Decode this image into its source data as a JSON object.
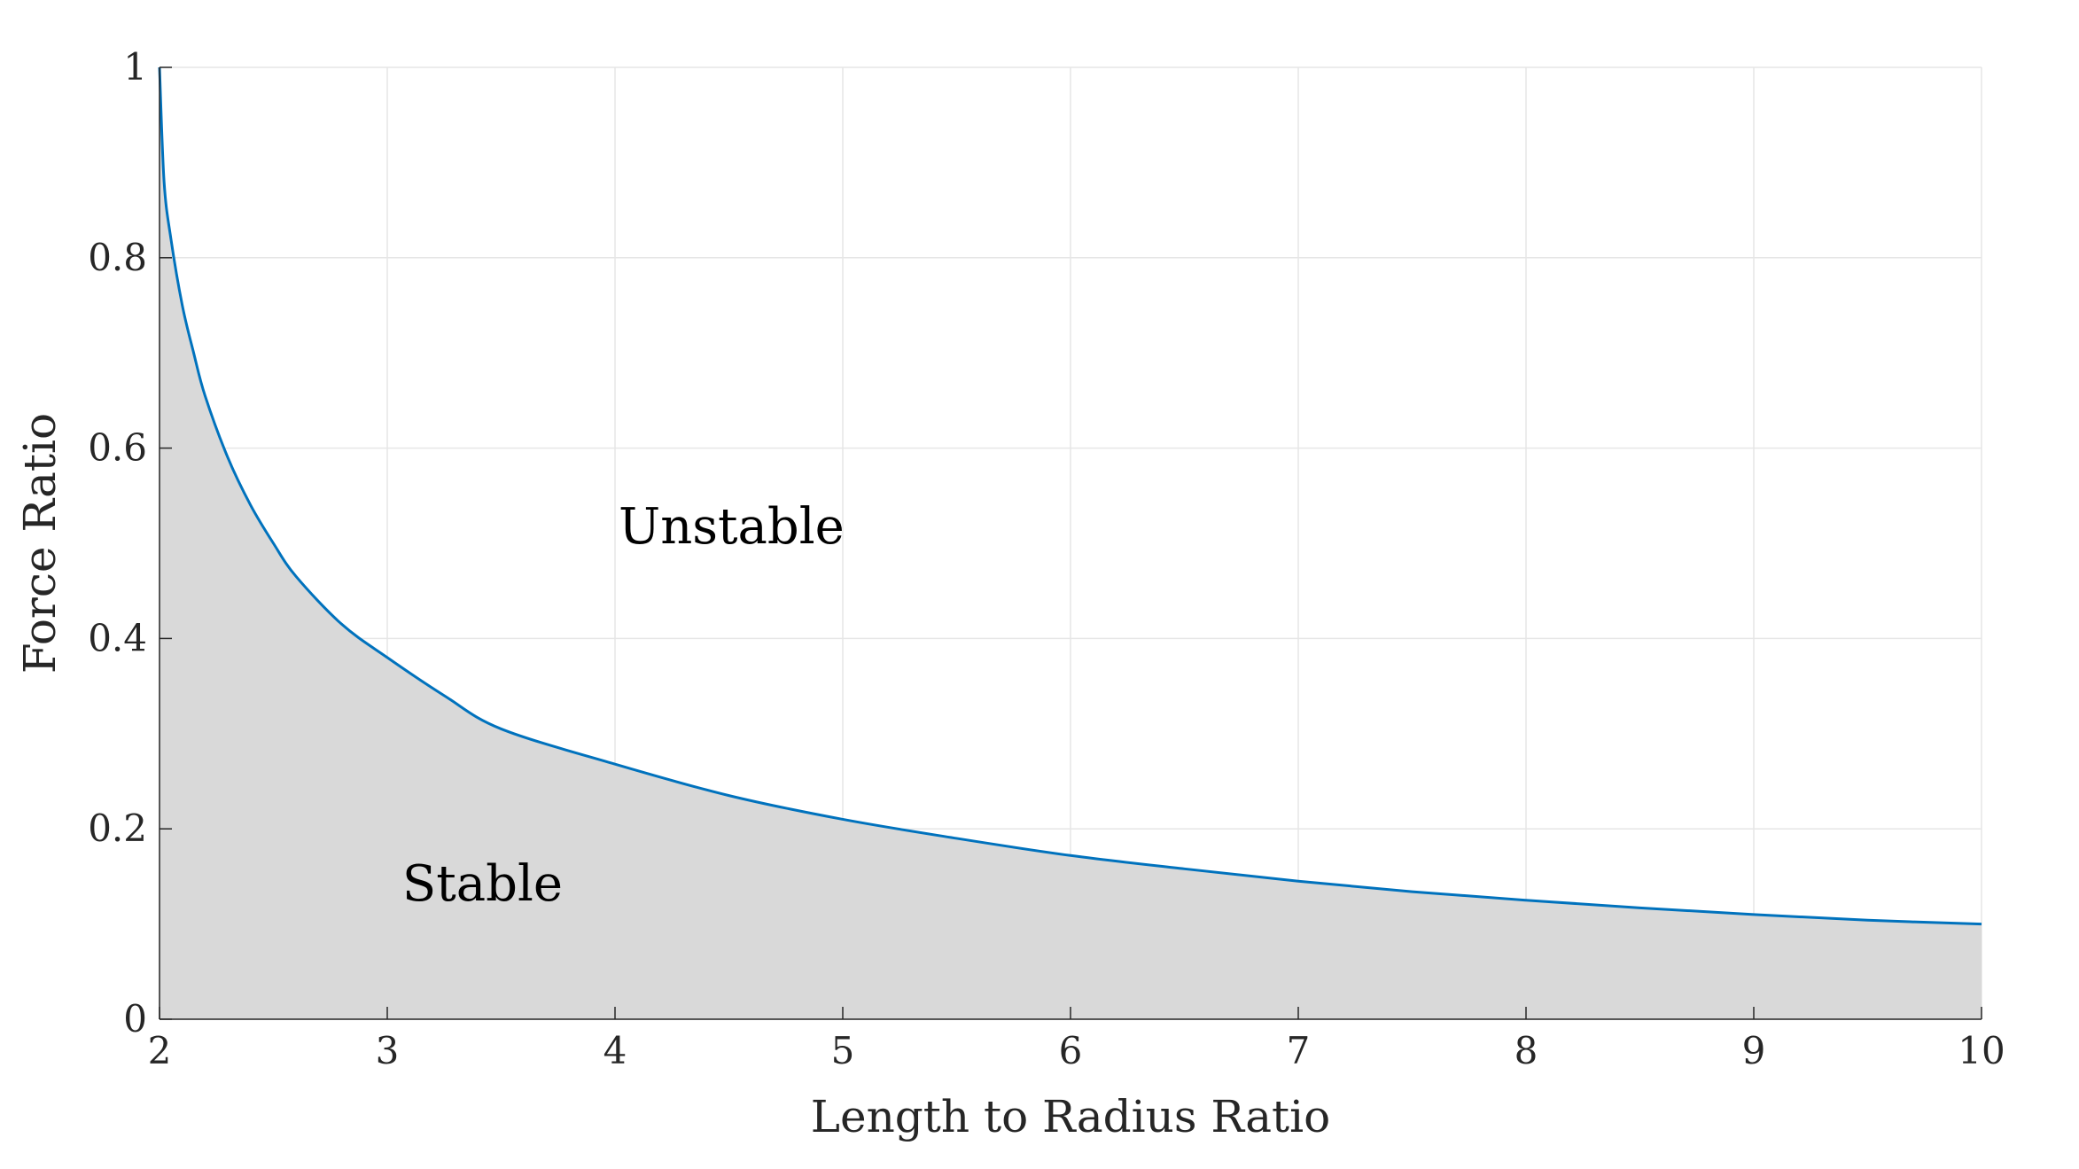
{
  "chart_data": {
    "type": "area",
    "title": "",
    "xlabel": "Length to Radius Ratio",
    "ylabel": "Force Ratio",
    "xlim": [
      2,
      10
    ],
    "ylim": [
      0,
      1
    ],
    "xticks": [
      2,
      3,
      4,
      5,
      6,
      7,
      8,
      9,
      10
    ],
    "xtick_labels": [
      "2",
      "3",
      "4",
      "5",
      "6",
      "7",
      "8",
      "9",
      "10"
    ],
    "yticks": [
      0,
      0.2,
      0.4,
      0.6,
      0.8,
      1
    ],
    "ytick_labels": [
      "0",
      "0.2",
      "0.4",
      "0.6",
      "0.8",
      "1"
    ],
    "grid": true,
    "line_color": "#0072BD",
    "fill_color": "#d9d9d9",
    "series": [
      {
        "x": [
          2.0,
          2.02,
          2.05,
          2.1,
          2.15,
          2.2,
          2.3,
          2.4,
          2.5,
          2.6,
          2.8,
          3.0,
          3.25,
          3.5,
          4.0,
          4.5,
          5.0,
          5.5,
          6.0,
          6.5,
          7.0,
          7.5,
          8.0,
          8.5,
          9.0,
          9.5,
          10.0
        ],
        "y": [
          1.0,
          0.88,
          0.82,
          0.75,
          0.7,
          0.655,
          0.59,
          0.54,
          0.5,
          0.465,
          0.415,
          0.38,
          0.34,
          0.305,
          0.268,
          0.235,
          0.21,
          0.19,
          0.172,
          0.158,
          0.145,
          0.134,
          0.125,
          0.117,
          0.11,
          0.104,
          0.1
        ]
      }
    ],
    "annotations": [
      {
        "text": "Unstable",
        "x": 4.0,
        "y": 0.5
      },
      {
        "text": "Stable",
        "x": 3.05,
        "y": 0.125
      }
    ]
  }
}
